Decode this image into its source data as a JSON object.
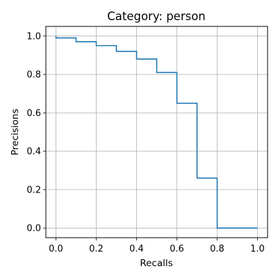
{
  "chart_data": {
    "type": "line",
    "style": "step-post",
    "title": "Category: person",
    "xlabel": "Recalls",
    "ylabel": "Precisions",
    "xlim": [
      -0.05,
      1.05
    ],
    "ylim": [
      -0.05,
      1.05
    ],
    "x_ticks": [
      0.0,
      0.2,
      0.4,
      0.6,
      0.8,
      1.0
    ],
    "x_tick_labels": [
      "0.0",
      "0.2",
      "0.4",
      "0.6",
      "0.8",
      "1.0"
    ],
    "y_ticks": [
      0.0,
      0.2,
      0.4,
      0.6,
      0.8,
      1.0
    ],
    "y_tick_labels": [
      "0.0",
      "0.2",
      "0.4",
      "0.6",
      "0.8",
      "1.0"
    ],
    "grid": true,
    "series": [
      {
        "color": "#1f77b4",
        "x": [
          0.0,
          0.0,
          0.1,
          0.2,
          0.3,
          0.4,
          0.5,
          0.6,
          0.7,
          0.8,
          0.9,
          1.0
        ],
        "y": [
          1.0,
          0.99,
          0.97,
          0.95,
          0.92,
          0.88,
          0.81,
          0.65,
          0.26,
          0.0,
          0.0,
          0.0
        ]
      }
    ]
  }
}
